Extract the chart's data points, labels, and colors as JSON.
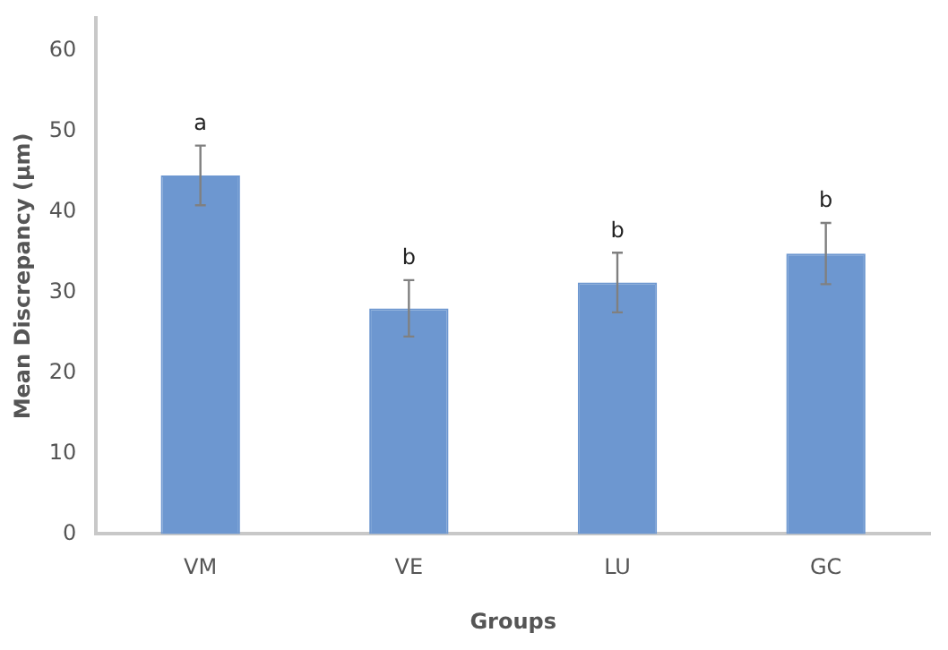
{
  "chart_data": {
    "type": "bar",
    "xlabel": "Groups",
    "ylabel": "Mean Discrepancy (μm)",
    "categories": [
      "VM",
      "VE",
      "LU",
      "GC"
    ],
    "values": [
      44.5,
      28.0,
      31.2,
      34.8
    ],
    "errors": [
      3.7,
      3.5,
      3.7,
      3.8
    ],
    "color": "#6d97d0",
    "ylim": [
      0,
      64
    ],
    "yticks": [
      0,
      10,
      20,
      30,
      40,
      50,
      60
    ],
    "grid": false,
    "legend": false,
    "annotations": [
      "a",
      "b",
      "b",
      "b"
    ]
  }
}
